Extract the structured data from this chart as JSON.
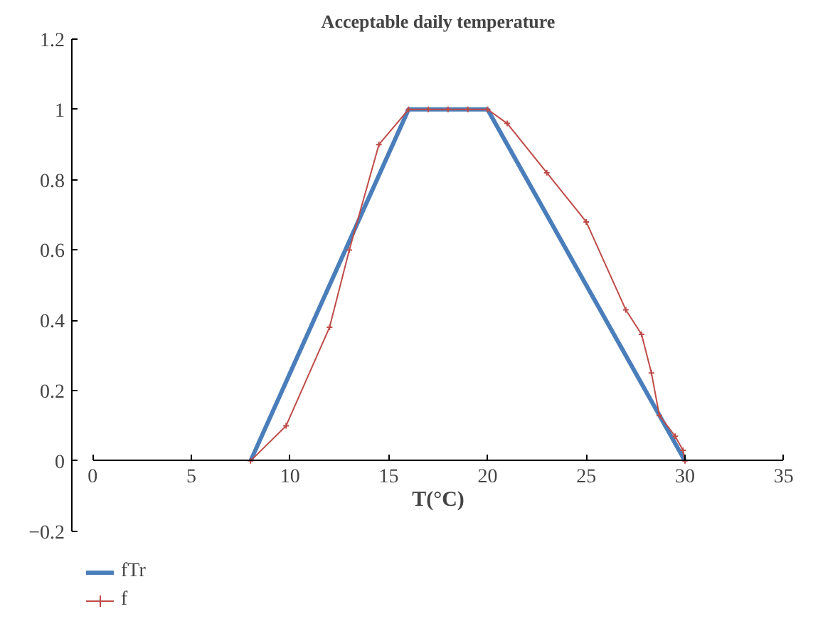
{
  "chart_data": {
    "type": "line",
    "title": "Acceptable daily temperature",
    "xlabel": "T(°C)",
    "xlim": [
      0,
      35
    ],
    "xticks": [
      0,
      5,
      10,
      15,
      20,
      25,
      30,
      35
    ],
    "ylim": [
      -0.2,
      1.2
    ],
    "yticks": [
      -0.2,
      0,
      0.2,
      0.4,
      0.6,
      0.8,
      1,
      1.2
    ],
    "grid": false,
    "legend": "bottom",
    "series": [
      {
        "name": "fTr",
        "color": "#4a7ebb",
        "x": [
          8,
          16,
          20,
          30
        ],
        "values": [
          0,
          1,
          1,
          0
        ],
        "marker": "none"
      },
      {
        "name": "f",
        "color": "#be4b48",
        "x": [
          8,
          9.8,
          12,
          13,
          14.5,
          16,
          17,
          18,
          19,
          20,
          21,
          23,
          25,
          27,
          27.8,
          28.3,
          28.7,
          29.5,
          29.9,
          30
        ],
        "values": [
          0,
          0.1,
          0.38,
          0.6,
          0.9,
          1,
          1,
          1,
          1,
          1,
          0.96,
          0.82,
          0.68,
          0.43,
          0.36,
          0.25,
          0.13,
          0.07,
          0.03,
          0
        ],
        "marker": "cross"
      }
    ]
  }
}
